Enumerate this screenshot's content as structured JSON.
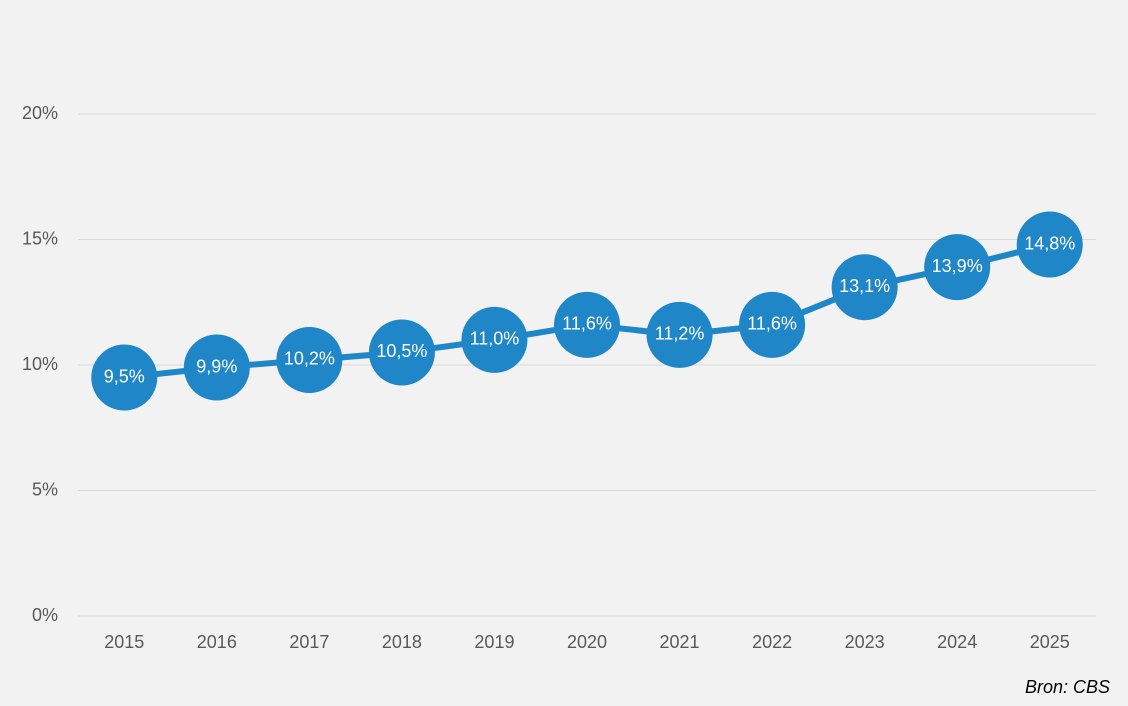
{
  "chart_data": {
    "type": "line",
    "categories": [
      "2015",
      "2016",
      "2017",
      "2018",
      "2019",
      "2020",
      "2021",
      "2022",
      "2023",
      "2024",
      "2025"
    ],
    "values": [
      9.5,
      9.9,
      10.2,
      10.5,
      11.0,
      11.6,
      11.2,
      11.6,
      13.1,
      13.9,
      14.8
    ],
    "value_labels": [
      "9,5%",
      "9,9%",
      "10,2%",
      "10,5%",
      "11,0%",
      "11,6%",
      "11,2%",
      "11,6%",
      "13,1%",
      "13,9%",
      "14,8%"
    ],
    "color": "#1f86c8",
    "ylim": [
      0,
      20
    ],
    "yticks": [
      {
        "value": 0,
        "label": "0%"
      },
      {
        "value": 5,
        "label": "5%"
      },
      {
        "value": 10,
        "label": "10%"
      },
      {
        "value": 15,
        "label": "15%"
      },
      {
        "value": 20,
        "label": "20%"
      }
    ],
    "grid": true,
    "annotation": "Bron: CBS"
  }
}
